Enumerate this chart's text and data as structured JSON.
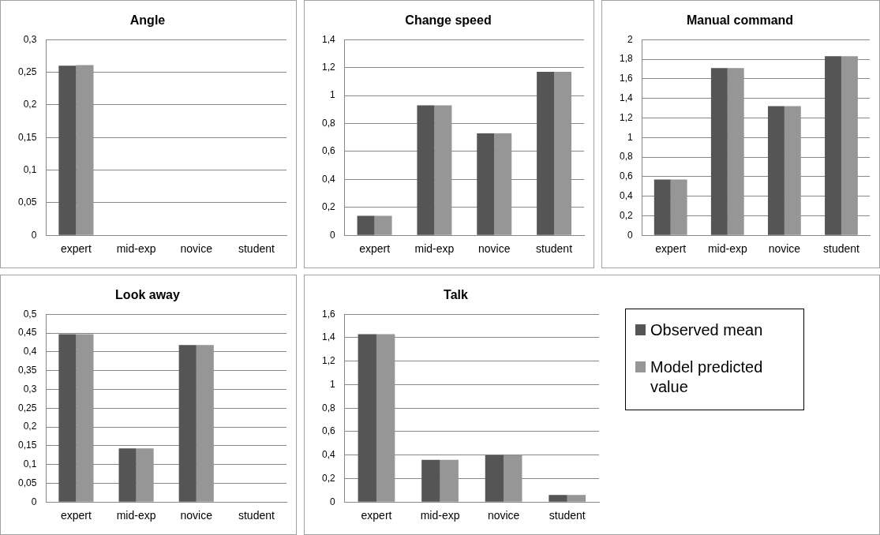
{
  "chart_data": [
    {
      "type": "bar",
      "title": "Angle",
      "categories": [
        "expert",
        "mid-exp",
        "novice",
        "student"
      ],
      "series": [
        {
          "color": "#555555",
          "values": [
            0.26,
            0,
            0,
            0
          ]
        },
        {
          "color": "#969696",
          "values": [
            0.261,
            0,
            0,
            0
          ]
        }
      ],
      "ylim": [
        0,
        0.3
      ],
      "yticks": [
        0,
        {
          "value": 0.05,
          "label": "0,05"
        },
        {
          "value": 0.1,
          "label": "0,1"
        },
        {
          "value": 0.15,
          "label": "0,15"
        },
        {
          "value": 0.2,
          "label": "0,2"
        },
        {
          "value": 0.25,
          "label": "0,25"
        },
        {
          "value": 0.3,
          "label": "0,3"
        }
      ],
      "grid": "y"
    },
    {
      "type": "bar",
      "title": "Change speed",
      "categories": [
        "expert",
        "mid-exp",
        "novice",
        "student"
      ],
      "series": [
        {
          "color": "#555555",
          "values": [
            0.14,
            0.93,
            0.73,
            1.17
          ]
        },
        {
          "color": "#969696",
          "values": [
            0.14,
            0.93,
            0.73,
            1.17
          ]
        }
      ],
      "ylim": [
        0,
        1.4
      ],
      "yticks": [
        0,
        {
          "value": 0.2,
          "label": "0,2"
        },
        {
          "value": 0.4,
          "label": "0,4"
        },
        {
          "value": 0.6,
          "label": "0,6"
        },
        {
          "value": 0.8,
          "label": "0,8"
        },
        1,
        {
          "value": 1.2,
          "label": "1,2"
        },
        {
          "value": 1.4,
          "label": "1,4"
        }
      ],
      "grid": "y"
    },
    {
      "type": "bar",
      "title": "Manual command",
      "categories": [
        "expert",
        "mid-exp",
        "novice",
        "student"
      ],
      "series": [
        {
          "color": "#555555",
          "values": [
            0.57,
            1.71,
            1.32,
            1.83
          ]
        },
        {
          "color": "#969696",
          "values": [
            0.57,
            1.71,
            1.32,
            1.83
          ]
        }
      ],
      "ylim": [
        0,
        2
      ],
      "yticks": [
        0,
        {
          "value": 0.2,
          "label": "0,2"
        },
        {
          "value": 0.4,
          "label": "0,4"
        },
        {
          "value": 0.6,
          "label": "0,6"
        },
        {
          "value": 0.8,
          "label": "0,8"
        },
        1,
        {
          "value": 1.2,
          "label": "1,2"
        },
        {
          "value": 1.4,
          "label": "1,4"
        },
        {
          "value": 1.6,
          "label": "1,6"
        },
        {
          "value": 1.8,
          "label": "1,8"
        },
        2
      ],
      "grid": "y"
    },
    {
      "type": "bar",
      "title": "Look away",
      "categories": [
        "expert",
        "mid-exp",
        "novice",
        "student"
      ],
      "series": [
        {
          "color": "#555555",
          "values": [
            0.447,
            0.143,
            0.418,
            0
          ]
        },
        {
          "color": "#969696",
          "values": [
            0.447,
            0.143,
            0.418,
            0
          ]
        }
      ],
      "ylim": [
        0,
        0.5
      ],
      "yticks": [
        0,
        {
          "value": 0.05,
          "label": "0,05"
        },
        {
          "value": 0.1,
          "label": "0,1"
        },
        {
          "value": 0.15,
          "label": "0,15"
        },
        {
          "value": 0.2,
          "label": "0,2"
        },
        {
          "value": 0.25,
          "label": "0,25"
        },
        {
          "value": 0.3,
          "label": "0,3"
        },
        {
          "value": 0.35,
          "label": "0,35"
        },
        {
          "value": 0.4,
          "label": "0,4"
        },
        {
          "value": 0.45,
          "label": "0,45"
        },
        {
          "value": 0.5,
          "label": "0,5"
        }
      ],
      "grid": "y"
    },
    {
      "type": "bar",
      "title": "Talk",
      "categories": [
        "expert",
        "mid-exp",
        "novice",
        "student"
      ],
      "series": [
        {
          "name": "Observed mean",
          "color": "#555555",
          "values": [
            1.43,
            0.36,
            0.4,
            0.06
          ]
        },
        {
          "name": "Model predicted value",
          "color": "#969696",
          "values": [
            1.43,
            0.36,
            0.4,
            0.06
          ]
        }
      ],
      "ylim": [
        0,
        1.6
      ],
      "yticks": [
        0,
        {
          "value": 0.2,
          "label": "0,2"
        },
        {
          "value": 0.4,
          "label": "0,4"
        },
        {
          "value": 0.6,
          "label": "0,6"
        },
        {
          "value": 0.8,
          "label": "0,8"
        },
        1,
        {
          "value": 1.2,
          "label": "1,2"
        },
        {
          "value": 1.4,
          "label": "1,4"
        },
        {
          "value": 1.6,
          "label": "1,6"
        }
      ],
      "grid": "y",
      "legend": "right"
    }
  ]
}
